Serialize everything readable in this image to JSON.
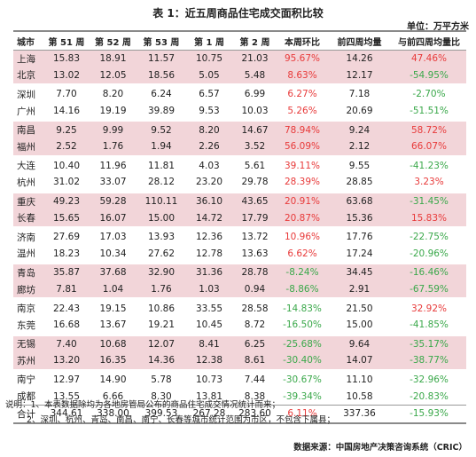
{
  "title": "表 1：近五周商品住宅成交面积比较",
  "unit": "单位：万平方米",
  "columns": [
    "城市",
    "第 51 周",
    "第 52 周",
    "第 53 周",
    "第 1 周",
    "第 2 周",
    "本周环比",
    "前四周均量",
    "与前四周均量比"
  ],
  "rows": [
    {
      "city": "上海",
      "w51": "15.83",
      "w52": "18.91",
      "w53": "11.57",
      "w1": "10.75",
      "w2": "21.03",
      "wow": "95.67%",
      "avg4": "14.26",
      "vs_avg": "47.46%"
    },
    {
      "city": "北京",
      "w51": "13.02",
      "w52": "12.05",
      "w53": "18.56",
      "w1": "5.05",
      "w2": "5.48",
      "wow": "8.63%",
      "avg4": "12.17",
      "vs_avg": "-54.95%"
    },
    {
      "city": "深圳",
      "w51": "7.70",
      "w52": "8.20",
      "w53": "6.24",
      "w1": "6.57",
      "w2": "6.99",
      "wow": "6.27%",
      "avg4": "7.18",
      "vs_avg": "-2.70%"
    },
    {
      "city": "广州",
      "w51": "14.16",
      "w52": "19.19",
      "w53": "39.89",
      "w1": "9.53",
      "w2": "10.03",
      "wow": "5.26%",
      "avg4": "20.69",
      "vs_avg": "-51.51%"
    },
    {
      "city": "南昌",
      "w51": "9.25",
      "w52": "9.99",
      "w53": "9.52",
      "w1": "8.20",
      "w2": "14.67",
      "wow": "78.94%",
      "avg4": "9.24",
      "vs_avg": "58.72%"
    },
    {
      "city": "福州",
      "w51": "2.52",
      "w52": "1.76",
      "w53": "1.94",
      "w1": "2.26",
      "w2": "3.52",
      "wow": "56.09%",
      "avg4": "2.12",
      "vs_avg": "66.07%"
    },
    {
      "city": "大连",
      "w51": "10.40",
      "w52": "11.96",
      "w53": "11.81",
      "w1": "4.03",
      "w2": "5.61",
      "wow": "39.11%",
      "avg4": "9.55",
      "vs_avg": "-41.23%"
    },
    {
      "city": "杭州",
      "w51": "31.02",
      "w52": "33.07",
      "w53": "28.12",
      "w1": "23.20",
      "w2": "29.78",
      "wow": "28.39%",
      "avg4": "28.85",
      "vs_avg": "3.23%"
    },
    {
      "city": "重庆",
      "w51": "49.23",
      "w52": "59.28",
      "w53": "110.11",
      "w1": "36.10",
      "w2": "43.65",
      "wow": "20.91%",
      "avg4": "63.68",
      "vs_avg": "-31.45%"
    },
    {
      "city": "长春",
      "w51": "15.65",
      "w52": "16.07",
      "w53": "15.00",
      "w1": "14.72",
      "w2": "17.79",
      "wow": "20.87%",
      "avg4": "15.36",
      "vs_avg": "15.83%"
    },
    {
      "city": "济南",
      "w51": "27.69",
      "w52": "17.03",
      "w53": "13.93",
      "w1": "12.36",
      "w2": "13.72",
      "wow": "10.96%",
      "avg4": "17.76",
      "vs_avg": "-22.75%"
    },
    {
      "city": "温州",
      "w51": "18.23",
      "w52": "10.34",
      "w53": "27.62",
      "w1": "12.78",
      "w2": "13.63",
      "wow": "6.62%",
      "avg4": "17.24",
      "vs_avg": "-20.96%"
    },
    {
      "city": "青岛",
      "w51": "35.87",
      "w52": "37.68",
      "w53": "32.90",
      "w1": "31.36",
      "w2": "28.78",
      "wow": "-8.24%",
      "avg4": "34.45",
      "vs_avg": "-16.46%"
    },
    {
      "city": "廊坊",
      "w51": "7.81",
      "w52": "1.04",
      "w53": "1.76",
      "w1": "1.03",
      "w2": "0.94",
      "wow": "-8.86%",
      "avg4": "2.91",
      "vs_avg": "-67.59%"
    },
    {
      "city": "南京",
      "w51": "22.43",
      "w52": "19.15",
      "w53": "10.86",
      "w1": "33.55",
      "w2": "28.58",
      "wow": "-14.83%",
      "avg4": "21.50",
      "vs_avg": "32.92%"
    },
    {
      "city": "东莞",
      "w51": "16.68",
      "w52": "13.67",
      "w53": "19.21",
      "w1": "10.45",
      "w2": "8.72",
      "wow": "-16.50%",
      "avg4": "15.00",
      "vs_avg": "-41.85%"
    },
    {
      "city": "无锡",
      "w51": "7.40",
      "w52": "10.68",
      "w53": "12.07",
      "w1": "8.41",
      "w2": "6.25",
      "wow": "-25.68%",
      "avg4": "9.64",
      "vs_avg": "-35.17%"
    },
    {
      "city": "苏州",
      "w51": "13.20",
      "w52": "16.35",
      "w53": "14.36",
      "w1": "12.38",
      "w2": "8.61",
      "wow": "-30.40%",
      "avg4": "14.07",
      "vs_avg": "-38.77%"
    },
    {
      "city": "南宁",
      "w51": "12.97",
      "w52": "14.90",
      "w53": "5.78",
      "w1": "10.73",
      "w2": "7.44",
      "wow": "-30.67%",
      "avg4": "11.10",
      "vs_avg": "-32.96%"
    },
    {
      "city": "成都",
      "w51": "13.55",
      "w52": "6.66",
      "w53": "8.30",
      "w1": "13.81",
      "w2": "8.38",
      "wow": "-39.34%",
      "avg4": "10.58",
      "vs_avg": "-20.83%"
    }
  ],
  "total": {
    "city": "合计",
    "w51": "344.61",
    "w52": "338.00",
    "w53": "399.53",
    "w1": "267.28",
    "w2": "283.60",
    "wow": "6.11%",
    "avg4": "337.36",
    "vs_avg": "-15.93%"
  },
  "notes": [
    "说明：1、本表数据除均为各地房管局公布的商品住宅成交情况统计而来；",
    "2、深圳、杭州、青岛、南昌、南宁、长春等城市统计范围为市区，不包含下属县；"
  ],
  "source": "数据来源：中国房地产决策咨询系统（CRIC）",
  "colors": {
    "positive": "#e83a3a",
    "negative": "#3aa84a",
    "row_highlight": "#f2d5d9"
  }
}
